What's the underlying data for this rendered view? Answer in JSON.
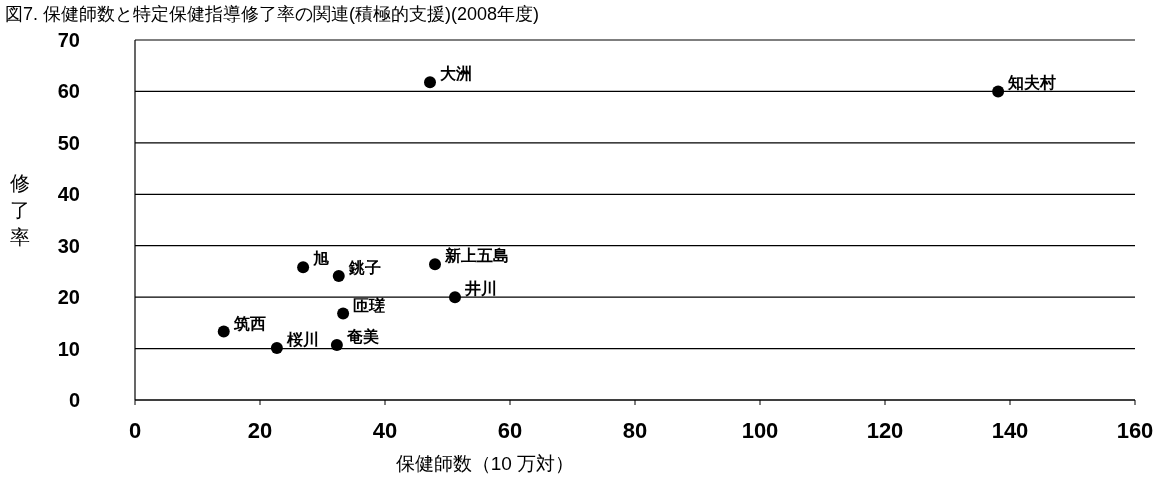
{
  "chart_data": {
    "type": "scatter",
    "title": "図7. 保健師数と特定保健指導修了率の関連(積極的支援)(2008年度)",
    "xlabel": "保健師数（10 万対）",
    "ylabel": "修了率",
    "x": [
      47.2,
      138.1,
      26.9,
      32.6,
      48,
      51.2,
      33.3,
      14.2,
      22.7,
      32.3
    ],
    "series": [
      {
        "color": "#000000",
        "values": [
          61.8,
          60,
          25.8,
          24.1,
          26.4,
          20,
          16.8,
          13.3,
          10.1,
          10.7
        ]
      }
    ],
    "annotations": [
      {
        "text": "大洲",
        "x": 47.2,
        "y": 61.8
      },
      {
        "text": "知夫村",
        "x": 138.1,
        "y": 60
      },
      {
        "text": "旭",
        "x": 26.9,
        "y": 25.8
      },
      {
        "text": "銚子",
        "x": 32.6,
        "y": 24.1
      },
      {
        "text": "新上五島",
        "x": 48,
        "y": 26.4
      },
      {
        "text": "井川",
        "x": 51.2,
        "y": 20
      },
      {
        "text": "匝瑳",
        "x": 33.3,
        "y": 16.8
      },
      {
        "text": "筑西",
        "x": 14.2,
        "y": 13.3
      },
      {
        "text": "桜川",
        "x": 22.7,
        "y": 10.1
      },
      {
        "text": "奄美",
        "x": 32.3,
        "y": 10.7
      }
    ],
    "xlim": [
      0,
      160
    ],
    "xticks": [
      0,
      20,
      40,
      60,
      80,
      100,
      120,
      140,
      160
    ],
    "ylim": [
      0,
      70
    ],
    "yticks": [
      0,
      10,
      20,
      30,
      40,
      50,
      60,
      70
    ],
    "grid": "y",
    "marker": "circle"
  }
}
